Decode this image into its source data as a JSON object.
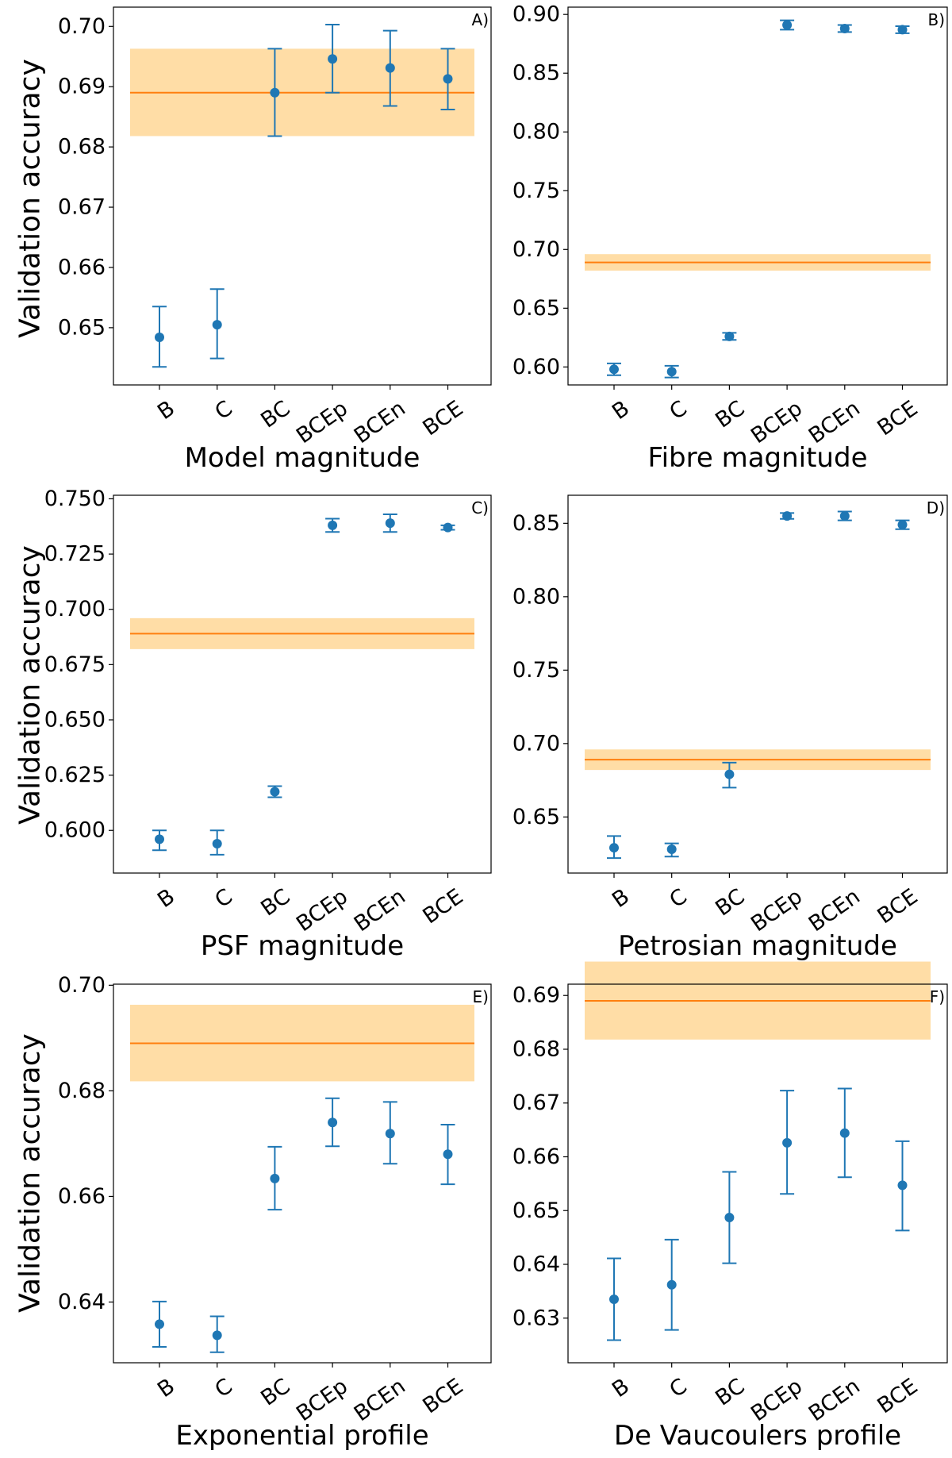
{
  "figure": {
    "ylabel": "Validation accuracy",
    "categories": [
      "B",
      "C",
      "BC",
      "BCEp",
      "BCEn",
      "BCE"
    ]
  },
  "colors": {
    "point": "#1f77b4",
    "baseline_line": "#ff7f0e",
    "baseline_band": "#ffdda6",
    "axis": "#000000"
  },
  "chart_data": [
    {
      "type": "scatter",
      "panel_label": "A)",
      "xlabel": "Model magnitude",
      "ylabel": "Validation accuracy",
      "categories": [
        "B",
        "C",
        "BC",
        "BCEp",
        "BCEn",
        "BCE"
      ],
      "ylim": [
        0.6405,
        0.7032
      ],
      "yticks": [
        0.65,
        0.66,
        0.67,
        0.68,
        0.69,
        0.7
      ],
      "ytick_labels": [
        "0.65",
        "0.66",
        "0.67",
        "0.68",
        "0.69",
        "0.70"
      ],
      "values": [
        0.6484,
        0.6505,
        0.689,
        0.6946,
        0.6931,
        0.6913
      ],
      "err_low": [
        0.6435,
        0.6449,
        0.6818,
        0.689,
        0.6868,
        0.6862
      ],
      "err_high": [
        0.6535,
        0.6564,
        0.6963,
        0.7003,
        0.6993,
        0.6963
      ],
      "baseline": {
        "value": 0.689,
        "low": 0.6818,
        "high": 0.6963
      }
    },
    {
      "type": "scatter",
      "panel_label": "B)",
      "xlabel": "Fibre magnitude",
      "ylabel": "",
      "categories": [
        "B",
        "C",
        "BC",
        "BCEp",
        "BCEn",
        "BCE"
      ],
      "ylim": [
        0.5847,
        0.9062
      ],
      "yticks": [
        0.6,
        0.65,
        0.7,
        0.75,
        0.8,
        0.85,
        0.9
      ],
      "ytick_labels": [
        "0.60",
        "0.65",
        "0.70",
        "0.75",
        "0.80",
        "0.85",
        "0.90"
      ],
      "values": [
        0.598,
        0.596,
        0.626,
        0.891,
        0.888,
        0.887
      ],
      "err_low": [
        0.593,
        0.591,
        0.623,
        0.887,
        0.885,
        0.884
      ],
      "err_high": [
        0.603,
        0.601,
        0.629,
        0.895,
        0.891,
        0.89
      ],
      "baseline": {
        "value": 0.689,
        "low": 0.682,
        "high": 0.696
      }
    },
    {
      "type": "scatter",
      "panel_label": "C)",
      "xlabel": "PSF magnitude",
      "ylabel": "Validation accuracy",
      "categories": [
        "B",
        "C",
        "BC",
        "BCEp",
        "BCEn",
        "BCE"
      ],
      "ylim": [
        0.5807,
        0.7516
      ],
      "yticks": [
        0.6,
        0.625,
        0.65,
        0.675,
        0.7,
        0.725,
        0.75
      ],
      "ytick_labels": [
        "0.600",
        "0.625",
        "0.650",
        "0.675",
        "0.700",
        "0.725",
        "0.750"
      ],
      "values": [
        0.596,
        0.594,
        0.6175,
        0.738,
        0.739,
        0.737
      ],
      "err_low": [
        0.591,
        0.589,
        0.615,
        0.735,
        0.735,
        0.736
      ],
      "err_high": [
        0.6,
        0.6,
        0.62,
        0.741,
        0.743,
        0.738
      ],
      "baseline": {
        "value": 0.689,
        "low": 0.682,
        "high": 0.696
      }
    },
    {
      "type": "scatter",
      "panel_label": "D)",
      "xlabel": "Petrosian magnitude",
      "ylabel": "",
      "categories": [
        "B",
        "C",
        "BC",
        "BCEp",
        "BCEn",
        "BCE"
      ],
      "ylim": [
        0.6118,
        0.8691
      ],
      "yticks": [
        0.65,
        0.7,
        0.75,
        0.8,
        0.85
      ],
      "ytick_labels": [
        "0.65",
        "0.70",
        "0.75",
        "0.80",
        "0.85"
      ],
      "values": [
        0.629,
        0.628,
        0.679,
        0.855,
        0.855,
        0.849
      ],
      "err_low": [
        0.622,
        0.623,
        0.67,
        0.853,
        0.852,
        0.846
      ],
      "err_high": [
        0.637,
        0.632,
        0.687,
        0.857,
        0.858,
        0.852
      ],
      "baseline": {
        "value": 0.689,
        "low": 0.682,
        "high": 0.696
      }
    },
    {
      "type": "scatter",
      "panel_label": "E)",
      "xlabel": "Exponential profile",
      "ylabel": "Validation accuracy",
      "categories": [
        "B",
        "C",
        "BC",
        "BCEp",
        "BCEn",
        "BCE"
      ],
      "ylim": [
        0.6285,
        0.7002
      ],
      "yticks": [
        0.64,
        0.66,
        0.68,
        0.7
      ],
      "ytick_labels": [
        "0.64",
        "0.66",
        "0.68",
        "0.70"
      ],
      "values": [
        0.6358,
        0.6337,
        0.6634,
        0.674,
        0.6719,
        0.668
      ],
      "err_low": [
        0.6315,
        0.6305,
        0.6575,
        0.6695,
        0.6662,
        0.6623
      ],
      "err_high": [
        0.6401,
        0.6373,
        0.6694,
        0.6786,
        0.6779,
        0.6736
      ],
      "baseline": {
        "value": 0.689,
        "low": 0.6818,
        "high": 0.6963
      }
    },
    {
      "type": "scatter",
      "panel_label": "F)",
      "xlabel": "De Vaucoulers profile",
      "ylabel": "",
      "categories": [
        "B",
        "C",
        "BC",
        "BCEp",
        "BCEn",
        "BCE"
      ],
      "ylim": [
        0.6217,
        0.6921
      ],
      "yticks": [
        0.63,
        0.64,
        0.65,
        0.66,
        0.67,
        0.68,
        0.69
      ],
      "ytick_labels": [
        "0.63",
        "0.64",
        "0.65",
        "0.66",
        "0.67",
        "0.68",
        "0.69"
      ],
      "values": [
        0.6335,
        0.6362,
        0.6487,
        0.6626,
        0.6644,
        0.6547
      ],
      "err_low": [
        0.6259,
        0.6278,
        0.6402,
        0.6531,
        0.6562,
        0.6463
      ],
      "err_high": [
        0.6411,
        0.6446,
        0.6572,
        0.6723,
        0.6727,
        0.6629
      ],
      "baseline": {
        "value": 0.689,
        "low": 0.6818,
        "high": 0.6963
      }
    }
  ]
}
